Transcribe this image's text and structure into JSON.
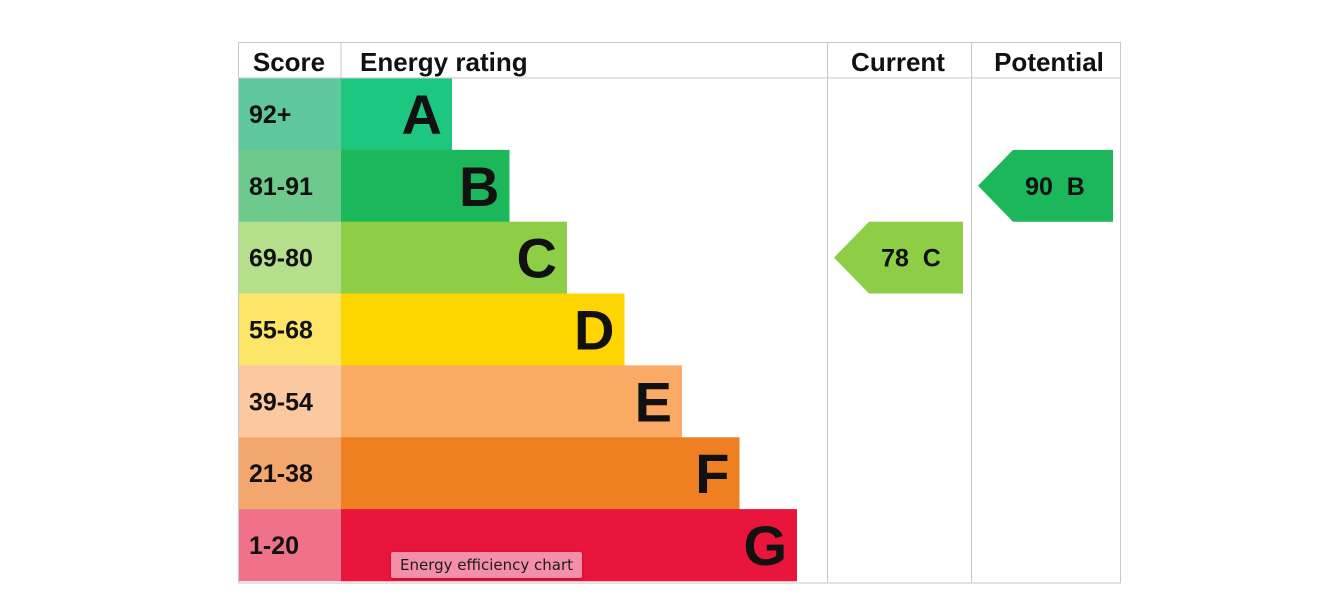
{
  "headers": {
    "score": "Score",
    "rating": "Energy rating",
    "current": "Current",
    "potential": "Potential"
  },
  "chart_data": {
    "type": "bar",
    "bands": [
      {
        "letter": "A",
        "range": "92+",
        "min": 92,
        "max": 100,
        "color": "#1ec780",
        "score_bg": "#5fc79e"
      },
      {
        "letter": "B",
        "range": "81-91",
        "min": 81,
        "max": 91,
        "color": "#1db75b",
        "score_bg": "#6dc98c"
      },
      {
        "letter": "C",
        "range": "69-80",
        "min": 69,
        "max": 80,
        "color": "#8dce46",
        "score_bg": "#b6df8c"
      },
      {
        "letter": "D",
        "range": "55-68",
        "min": 55,
        "max": 68,
        "color": "#fed501",
        "score_bg": "#fde568"
      },
      {
        "letter": "E",
        "range": "39-54",
        "min": 39,
        "max": 54,
        "color": "#fbaa65",
        "score_bg": "#fcc8a0"
      },
      {
        "letter": "F",
        "range": "21-38",
        "min": 21,
        "max": 38,
        "color": "#ef8022",
        "score_bg": "#f3a76e"
      },
      {
        "letter": "G",
        "range": "1-20",
        "min": 1,
        "max": 20,
        "color": "#e9153b",
        "score_bg": "#f0728a"
      }
    ],
    "current": {
      "score": 78,
      "band": "C",
      "label": "78  C",
      "color": "#8dce46"
    },
    "potential": {
      "score": 90,
      "band": "B",
      "label": "90  B",
      "color": "#1db75b"
    }
  },
  "tooltip": "Energy efficiency chart"
}
